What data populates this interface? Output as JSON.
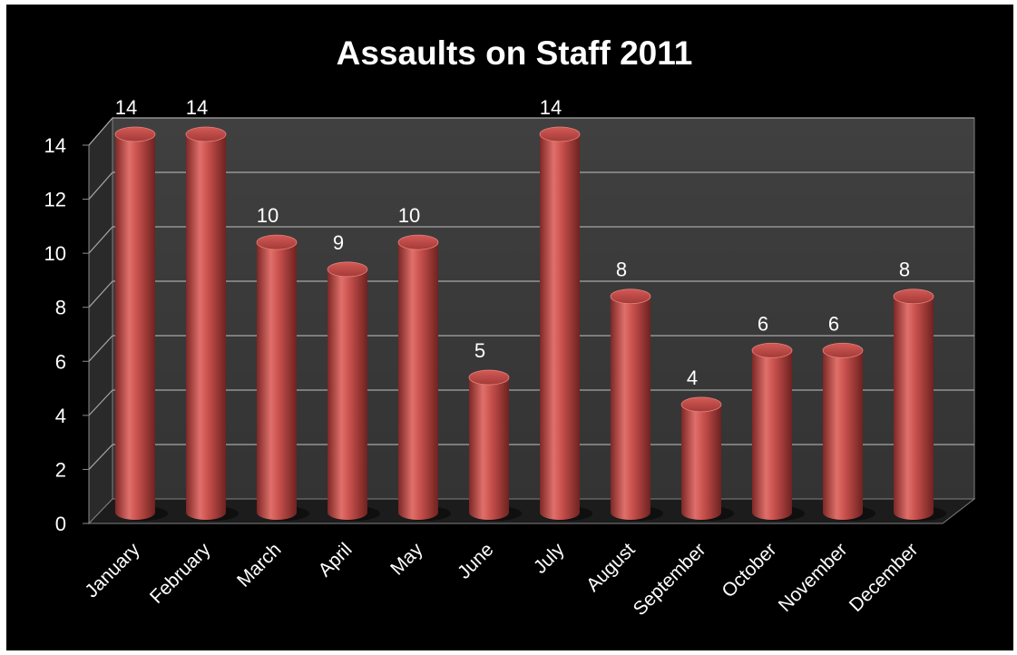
{
  "chart_data": {
    "type": "bar",
    "title": "Assaults on Staff 2011",
    "categories": [
      "January",
      "February",
      "March",
      "April",
      "May",
      "June",
      "July",
      "August",
      "September",
      "October",
      "November",
      "December"
    ],
    "values": [
      14,
      14,
      10,
      9,
      10,
      5,
      14,
      8,
      4,
      6,
      6,
      8
    ],
    "data_labels": [
      "14",
      "14",
      "10",
      "9",
      "10",
      "5",
      "14",
      "8",
      "4",
      "6",
      "6",
      "8"
    ],
    "y_ticks": [
      "0",
      "2",
      "4",
      "6",
      "8",
      "10",
      "12",
      "14"
    ],
    "ylim": [
      0,
      14
    ],
    "xlabel": "",
    "ylabel": "",
    "grid": true,
    "legend": "none",
    "style": "3d-cylinder",
    "colors": {
      "background": "#000000",
      "wall": "#3b3b3b",
      "floor": "#262626",
      "bar": "#c0504d",
      "bar_dark": "#8a2d2b",
      "bar_light": "#e47a76",
      "gridline": "#a6a6a6",
      "text": "#ffffff"
    }
  }
}
